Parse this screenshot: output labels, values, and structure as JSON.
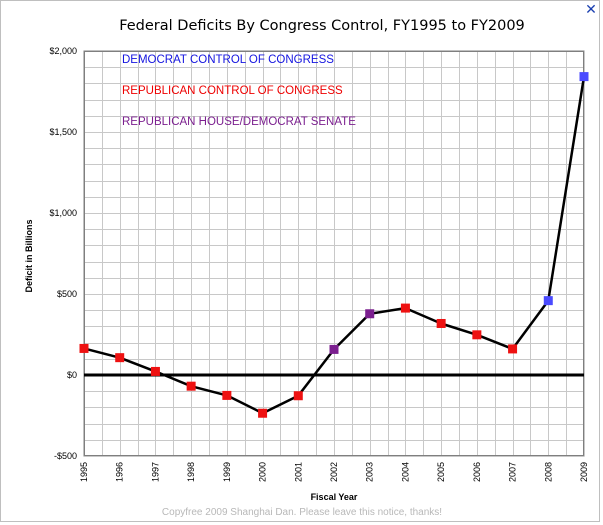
{
  "window": {
    "close_glyph": "✕"
  },
  "chart_data": {
    "type": "line",
    "title": "Federal Deficits By Congress Control, FY1995 to FY2009",
    "xlabel": "Fiscal Year",
    "ylabel": "Deficit in Billions",
    "ylim": [
      -500,
      2000
    ],
    "y_ticks": [
      -500,
      0,
      500,
      1000,
      1500,
      2000
    ],
    "y_tick_labels": [
      "-$500",
      "$0",
      "$500",
      "$1,000",
      "$1,500",
      "$2,000"
    ],
    "categories": [
      "1995",
      "1996",
      "1997",
      "1998",
      "1999",
      "2000",
      "2001",
      "2002",
      "2003",
      "2004",
      "2005",
      "2006",
      "2007",
      "2008",
      "2009"
    ],
    "values": [
      164,
      107,
      22,
      -69,
      -126,
      -236,
      -128,
      158,
      378,
      413,
      318,
      248,
      161,
      459,
      1842
    ],
    "control": [
      "R",
      "R",
      "R",
      "R",
      "R",
      "R",
      "R",
      "S",
      "S",
      "R",
      "R",
      "R",
      "R",
      "D",
      "D"
    ],
    "control_colors": {
      "D": "#4b4bff",
      "R": "#ee1111",
      "S": "#7b1f8f"
    },
    "legend": [
      {
        "key": "D",
        "label": "DEMOCRAT CONTROL OF CONGRESS",
        "color": "#1515e0"
      },
      {
        "key": "R",
        "label": "REPUBLICAN CONTROL OF CONGRESS",
        "color": "#ee0000"
      },
      {
        "key": "S",
        "label": "REPUBLICAN HOUSE/DEMOCRAT SENATE",
        "color": "#7b1f8f"
      }
    ],
    "legend_position": "top-left",
    "grid": true,
    "line_color": "#000000",
    "zero_line_color": "#000000"
  },
  "footer": {
    "notice": "Copyfree 2009 Shanghai Dan.  Please leave this notice, thanks!"
  }
}
